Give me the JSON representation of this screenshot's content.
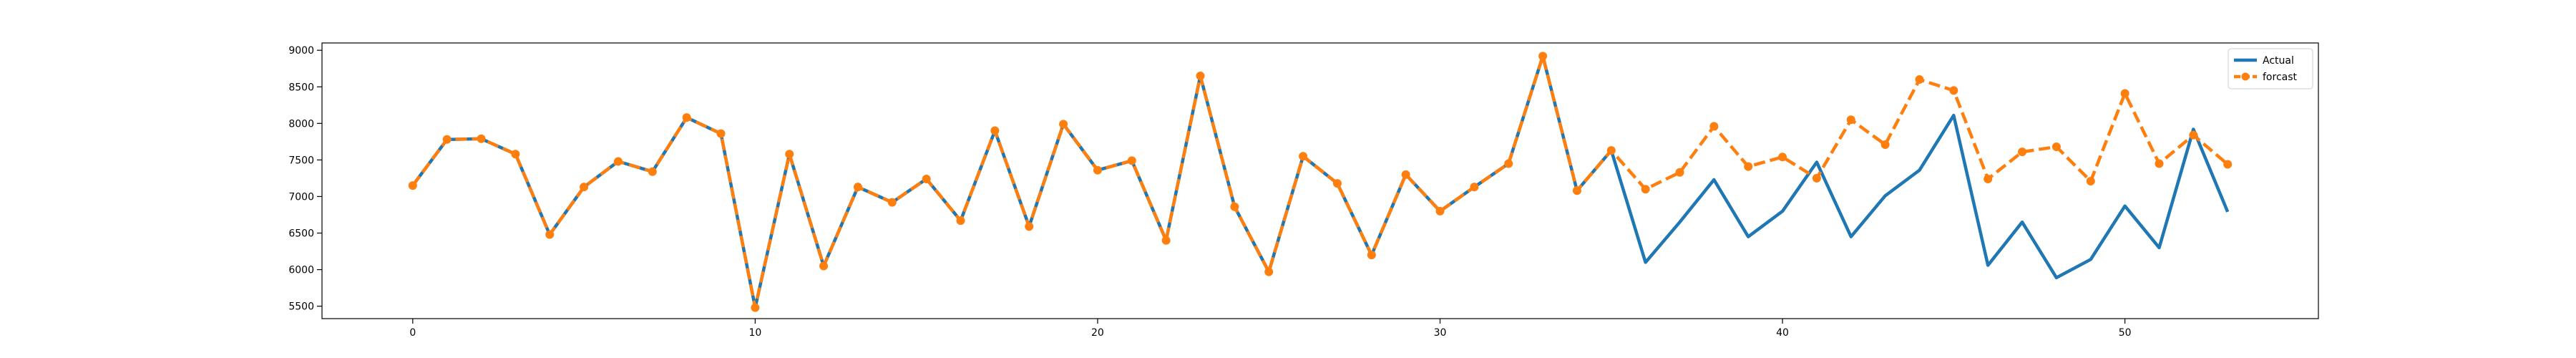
{
  "chart_data": {
    "type": "line",
    "title": "",
    "xlabel": "",
    "ylabel": "",
    "xlim": [
      -2.65,
      55.65
    ],
    "ylim": [
      5330,
      9100
    ],
    "x_ticks": [
      0,
      10,
      20,
      30,
      40,
      50
    ],
    "y_ticks": [
      5500,
      6000,
      6500,
      7000,
      7500,
      8000,
      8500,
      9000
    ],
    "grid": false,
    "legend_position": "top-right",
    "x": [
      0,
      1,
      2,
      3,
      4,
      5,
      6,
      7,
      8,
      9,
      10,
      11,
      12,
      13,
      14,
      15,
      16,
      17,
      18,
      19,
      20,
      21,
      22,
      23,
      24,
      25,
      26,
      27,
      28,
      29,
      30,
      31,
      32,
      33,
      34,
      35,
      36,
      37,
      38,
      39,
      40,
      41,
      42,
      43,
      44,
      45,
      46,
      47,
      48,
      49,
      50,
      51,
      52,
      53
    ],
    "series": [
      {
        "name": "Actual",
        "color": "#1f77b4",
        "line_style": "solid",
        "marker": "none",
        "values": [
          7150,
          7780,
          7790,
          7580,
          6480,
          7130,
          7480,
          7340,
          8080,
          7860,
          5480,
          7580,
          6050,
          7130,
          6920,
          7240,
          6670,
          7900,
          6590,
          7990,
          7360,
          7490,
          6400,
          8650,
          6860,
          5970,
          7550,
          7180,
          6200,
          7300,
          6800,
          7130,
          7450,
          8920,
          7080,
          7630,
          6100,
          6650,
          7230,
          6450,
          6800,
          7470,
          6450,
          7010,
          7360,
          8110,
          6060,
          6650,
          5890,
          6140,
          6870,
          6300,
          7920,
          6790
        ]
      },
      {
        "name": "forcast",
        "color": "#ff7f0e",
        "line_style": "dashed",
        "marker": "circle",
        "values": [
          7150,
          7780,
          7790,
          7580,
          6480,
          7130,
          7480,
          7340,
          8080,
          7860,
          5480,
          7580,
          6050,
          7130,
          6920,
          7240,
          6670,
          7900,
          6590,
          7990,
          7360,
          7490,
          6400,
          8650,
          6860,
          5970,
          7550,
          7180,
          6200,
          7300,
          6800,
          7130,
          7450,
          8920,
          7080,
          7630,
          7100,
          7330,
          7960,
          7410,
          7540,
          7250,
          8050,
          7710,
          8600,
          8450,
          7240,
          7610,
          7680,
          7210,
          8410,
          7450,
          7840,
          7440
        ]
      }
    ]
  }
}
